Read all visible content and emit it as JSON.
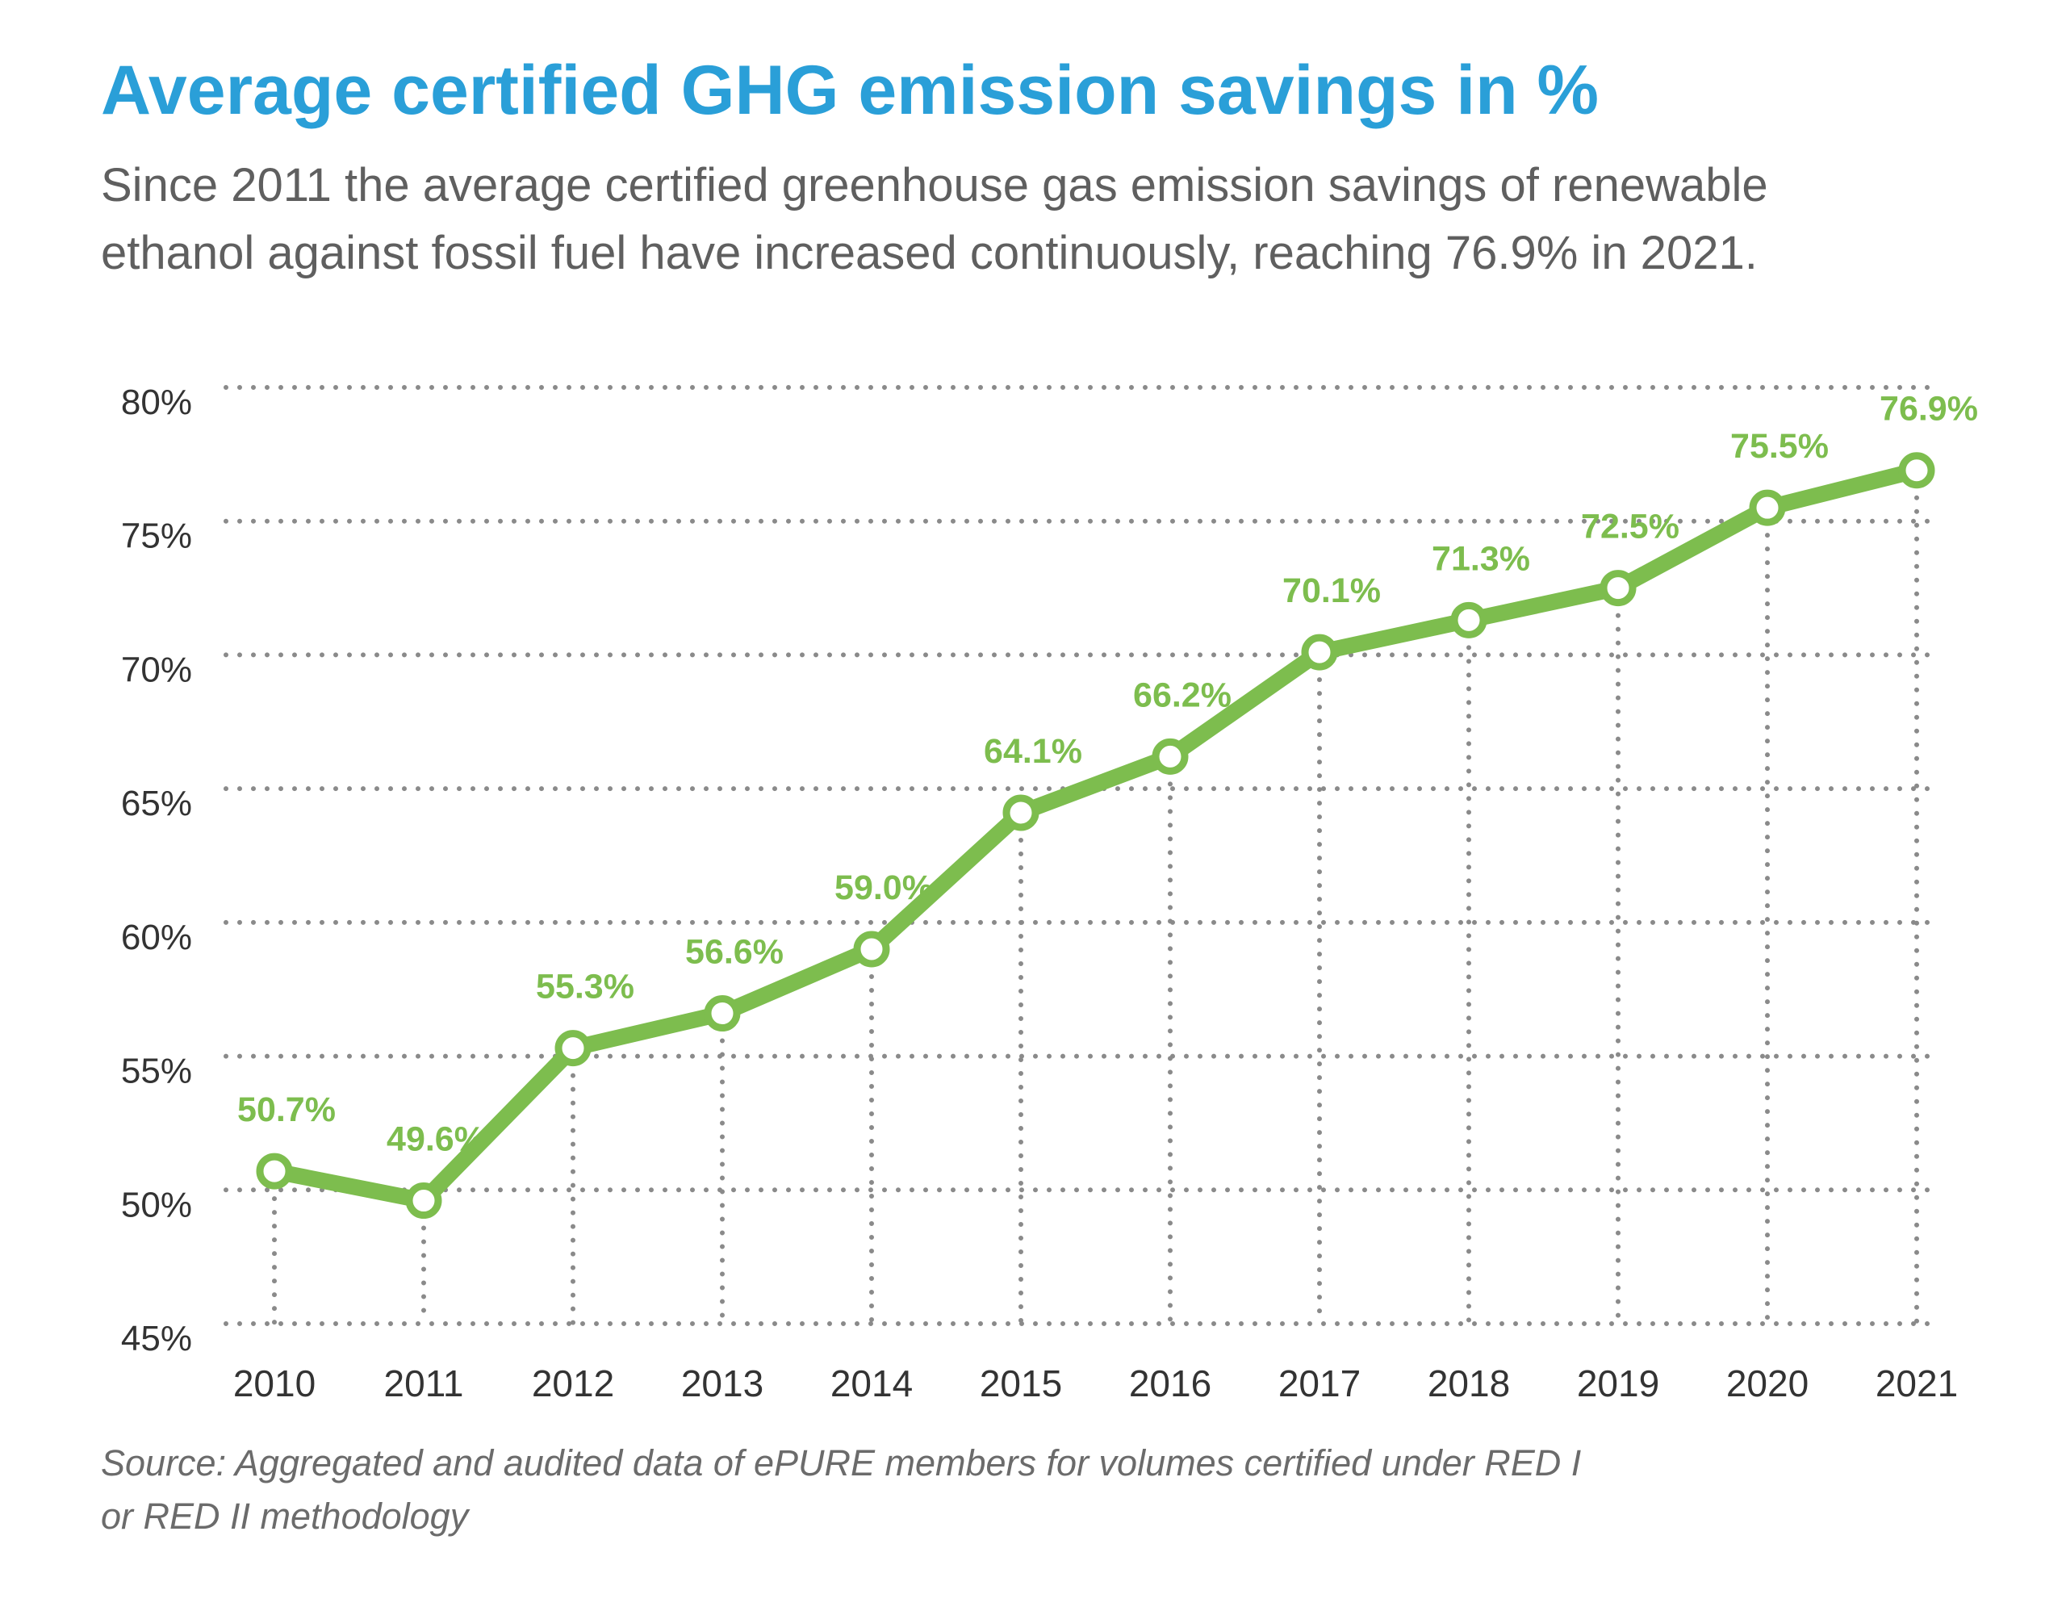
{
  "header": {
    "title": "Average certified GHG emission savings in %",
    "subtitle_line1": "Since 2011 the average certified greenhouse gas emission savings of renewable",
    "subtitle_line2": "ethanol against fossil fuel have increased continuously, reaching 76.9% in 2021."
  },
  "footer": {
    "source_line1": "Source: Aggregated and audited data of ePURE members for volumes certified under RED I",
    "source_line2": "or RED II methodology"
  },
  "colors": {
    "title": "#2a9fd8",
    "line": "#7dbd4e",
    "grid": "#8a8a8a",
    "axis_text": "#333333"
  },
  "chart_data": {
    "type": "line",
    "title": "Average certified GHG emission savings in %",
    "xlabel": "",
    "ylabel": "",
    "x": [
      "2010",
      "2011",
      "2012",
      "2013",
      "2014",
      "2015",
      "2016",
      "2017",
      "2018",
      "2019",
      "2020",
      "2021"
    ],
    "series": [
      {
        "name": "Average certified GHG emission savings",
        "values": [
          50.7,
          49.6,
          55.3,
          56.6,
          59.0,
          64.1,
          66.2,
          70.1,
          71.3,
          72.5,
          75.5,
          76.9
        ],
        "labels": [
          "50.7%",
          "49.6%",
          "55.3%",
          "56.6%",
          "59.0%",
          "64.1%",
          "66.2%",
          "70.1%",
          "71.3%",
          "72.5%",
          "75.5%",
          "76.9%"
        ]
      }
    ],
    "ylim": [
      45,
      80
    ],
    "yticks": [
      45,
      50,
      55,
      60,
      65,
      70,
      75,
      80
    ],
    "ytick_labels": [
      "45%",
      "50%",
      "55%",
      "60%",
      "65%",
      "70%",
      "75%",
      "80%"
    ],
    "grid": "dotted"
  }
}
